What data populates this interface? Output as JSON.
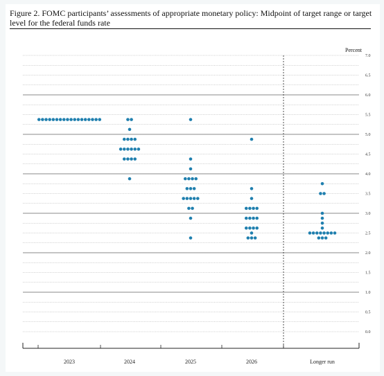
{
  "title": "Figure 2.  FOMC participants’ assessments of appropriate monetary policy:  Midpoint of target range or target level for the federal funds rate",
  "chart_data": {
    "type": "scatter",
    "title": "Figure 2.  FOMC participants’ assessments of appropriate monetary policy:  Midpoint of target range or target level for the federal funds rate",
    "ylabel": "Percent",
    "ylim": [
      0,
      7
    ],
    "ytick_labels": [
      "0.0",
      "0.5",
      "1.0",
      "1.5",
      "2.0",
      "2.5",
      "3.0",
      "3.5",
      "4.0",
      "4.5",
      "5.0",
      "5.5",
      "6.0",
      "6.5",
      "7.0"
    ],
    "categories": [
      "2023",
      "2024",
      "2025",
      "2026",
      "Longer run"
    ],
    "dot_color": "#1f7fae",
    "dots": [
      {
        "category": "2023",
        "points": [
          {
            "y": 5.375,
            "count": 18
          }
        ]
      },
      {
        "category": "2024",
        "points": [
          {
            "y": 5.375,
            "count": 2
          },
          {
            "y": 5.125,
            "count": 1
          },
          {
            "y": 4.875,
            "count": 4
          },
          {
            "y": 4.625,
            "count": 6
          },
          {
            "y": 4.375,
            "count": 4
          },
          {
            "y": 3.875,
            "count": 1
          }
        ]
      },
      {
        "category": "2025",
        "points": [
          {
            "y": 5.375,
            "count": 1
          },
          {
            "y": 4.375,
            "count": 1
          },
          {
            "y": 4.125,
            "count": 1
          },
          {
            "y": 3.875,
            "count": 4
          },
          {
            "y": 3.625,
            "count": 3
          },
          {
            "y": 3.375,
            "count": 5
          },
          {
            "y": 3.125,
            "count": 2
          },
          {
            "y": 2.875,
            "count": 1
          },
          {
            "y": 2.375,
            "count": 1
          }
        ]
      },
      {
        "category": "2026",
        "points": [
          {
            "y": 4.875,
            "count": 1
          },
          {
            "y": 3.625,
            "count": 1
          },
          {
            "y": 3.375,
            "count": 1
          },
          {
            "y": 3.125,
            "count": 4
          },
          {
            "y": 2.875,
            "count": 4
          },
          {
            "y": 2.625,
            "count": 4
          },
          {
            "y": 2.5,
            "count": 1
          },
          {
            "y": 2.375,
            "count": 3
          }
        ]
      },
      {
        "category": "Longer run",
        "points": [
          {
            "y": 3.75,
            "count": 1
          },
          {
            "y": 3.5,
            "count": 2
          },
          {
            "y": 3.0,
            "count": 1
          },
          {
            "y": 2.875,
            "count": 1
          },
          {
            "y": 2.75,
            "count": 1
          },
          {
            "y": 2.625,
            "count": 1
          },
          {
            "y": 2.5,
            "count": 8
          },
          {
            "y": 2.375,
            "count": 3
          }
        ]
      }
    ],
    "grid": true,
    "separator_before": "Longer run"
  }
}
